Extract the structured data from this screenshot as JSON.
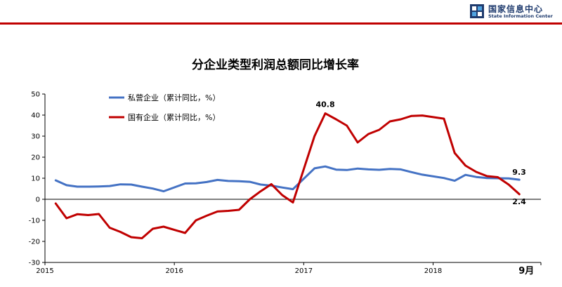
{
  "header": {
    "logo_cn": "国家信息中心",
    "logo_en": "State Information Center",
    "accent_color": "#c00000",
    "logo_color": "#1f3b6e"
  },
  "chart_data": {
    "type": "line",
    "title": "分企业类型利润总额同比增长率",
    "xlabel": "",
    "ylabel": "",
    "ylim": [
      -30,
      50
    ],
    "yticks": [
      50,
      40,
      30,
      20,
      10,
      0,
      -10,
      -20,
      -30
    ],
    "x_tick_labels": [
      "2015",
      "2016",
      "2017",
      "2018"
    ],
    "x_tick_dates": [
      "2015-01",
      "2016-01",
      "2017-01",
      "2018-01"
    ],
    "x_range": [
      "2015-01",
      "2018-11"
    ],
    "grid": false,
    "legend_position": "top-left",
    "end_marker_label": "9月",
    "series": [
      {
        "name": "私营企业（累计同比，%）",
        "color": "#4472c4",
        "points": [
          [
            "2015-02",
            9.0
          ],
          [
            "2015-03",
            6.7
          ],
          [
            "2015-04",
            6.0
          ],
          [
            "2015-05",
            6.0
          ],
          [
            "2015-06",
            6.1
          ],
          [
            "2015-07",
            6.3
          ],
          [
            "2015-08",
            7.1
          ],
          [
            "2015-09",
            7.0
          ],
          [
            "2015-10",
            6.0
          ],
          [
            "2015-11",
            5.1
          ],
          [
            "2015-12",
            3.8
          ],
          [
            "2016-02",
            7.5
          ],
          [
            "2016-03",
            7.6
          ],
          [
            "2016-04",
            8.2
          ],
          [
            "2016-05",
            9.2
          ],
          [
            "2016-06",
            8.7
          ],
          [
            "2016-07",
            8.6
          ],
          [
            "2016-08",
            8.3
          ],
          [
            "2016-09",
            7.0
          ],
          [
            "2016-10",
            6.5
          ],
          [
            "2016-11",
            5.6
          ],
          [
            "2016-12",
            4.8
          ],
          [
            "2017-02",
            14.7
          ],
          [
            "2017-03",
            15.6
          ],
          [
            "2017-04",
            14.1
          ],
          [
            "2017-05",
            13.9
          ],
          [
            "2017-06",
            14.6
          ],
          [
            "2017-07",
            14.2
          ],
          [
            "2017-08",
            14.0
          ],
          [
            "2017-09",
            14.4
          ],
          [
            "2017-10",
            14.2
          ],
          [
            "2017-11",
            12.9
          ],
          [
            "2017-12",
            11.7
          ],
          [
            "2018-02",
            10.1
          ],
          [
            "2018-03",
            8.8
          ],
          [
            "2018-04",
            11.6
          ],
          [
            "2018-05",
            10.6
          ],
          [
            "2018-06",
            10.1
          ],
          [
            "2018-07",
            10.0
          ],
          [
            "2018-08",
            9.9
          ],
          [
            "2018-09",
            9.3
          ]
        ],
        "end_label": "9.3"
      },
      {
        "name": "国有企业（累计同比，%）",
        "color": "#c00000",
        "points": [
          [
            "2015-02",
            -2.0
          ],
          [
            "2015-03",
            -9.0
          ],
          [
            "2015-04",
            -7.1
          ],
          [
            "2015-05",
            -7.5
          ],
          [
            "2015-06",
            -7.0
          ],
          [
            "2015-07",
            -13.5
          ],
          [
            "2015-08",
            -15.5
          ],
          [
            "2015-09",
            -18.0
          ],
          [
            "2015-10",
            -18.5
          ],
          [
            "2015-11",
            -14.0
          ],
          [
            "2015-12",
            -13.0
          ],
          [
            "2016-02",
            -16.0
          ],
          [
            "2016-03",
            -10.0
          ],
          [
            "2016-04",
            -7.8
          ],
          [
            "2016-05",
            -5.8
          ],
          [
            "2016-06",
            -5.5
          ],
          [
            "2016-07",
            -5.0
          ],
          [
            "2016-08",
            0.0
          ],
          [
            "2016-09",
            3.8
          ],
          [
            "2016-10",
            7.2
          ],
          [
            "2016-11",
            2.0
          ],
          [
            "2016-12",
            -1.5
          ],
          [
            "2017-02",
            30.0
          ],
          [
            "2017-03",
            40.8
          ],
          [
            "2017-04",
            38.0
          ],
          [
            "2017-05",
            35.0
          ],
          [
            "2017-06",
            27.0
          ],
          [
            "2017-07",
            31.0
          ],
          [
            "2017-08",
            33.0
          ],
          [
            "2017-09",
            37.0
          ],
          [
            "2017-10",
            38.0
          ],
          [
            "2017-11",
            39.6
          ],
          [
            "2017-12",
            39.8
          ],
          [
            "2018-02",
            38.3
          ],
          [
            "2018-03",
            22.0
          ],
          [
            "2018-04",
            16.0
          ],
          [
            "2018-05",
            13.0
          ],
          [
            "2018-06",
            11.0
          ],
          [
            "2018-07",
            10.5
          ],
          [
            "2018-08",
            7.0
          ],
          [
            "2018-09",
            2.4
          ]
        ],
        "peak_label": "40.8",
        "end_label": "2.4"
      }
    ]
  }
}
